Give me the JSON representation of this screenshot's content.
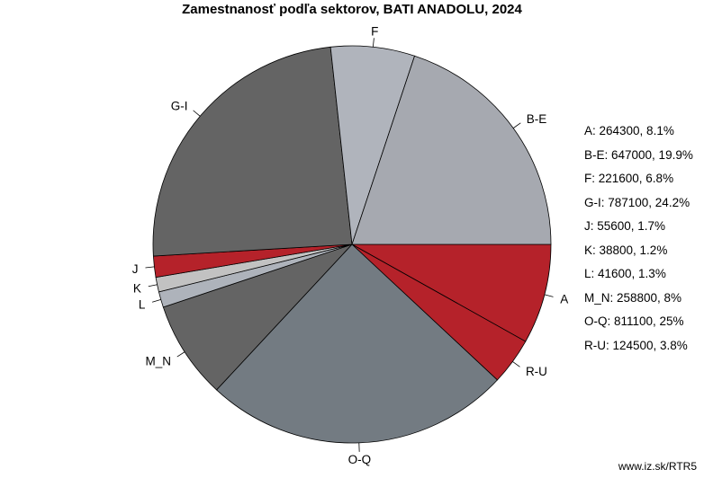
{
  "chart_data": {
    "type": "pie",
    "title": "Zamestnanosť podľa sektorov, BATI ANADOLU, 2024",
    "slices": [
      {
        "label": "A",
        "value": 264300,
        "percent": "8.1%",
        "color": "#b5222a"
      },
      {
        "label": "R-U",
        "value": 124500,
        "percent": "3.8%",
        "color": "#b5222a"
      },
      {
        "label": "O-Q",
        "value": 811100,
        "percent": "25%",
        "color": "#737b82"
      },
      {
        "label": "M_N",
        "value": 258800,
        "percent": "8%",
        "color": "#646464"
      },
      {
        "label": "L",
        "value": 41600,
        "percent": "1.3%",
        "color": "#aeb3bb"
      },
      {
        "label": "K",
        "value": 38800,
        "percent": "1.2%",
        "color": "#c2c2c2"
      },
      {
        "label": "J",
        "value": 55600,
        "percent": "1.7%",
        "color": "#b5222a"
      },
      {
        "label": "G-I",
        "value": 787100,
        "percent": "24.2%",
        "color": "#646464"
      },
      {
        "label": "F",
        "value": 221600,
        "percent": "6.8%",
        "color": "#b0b4bc"
      },
      {
        "label": "B-E",
        "value": 647000,
        "percent": "19.9%",
        "color": "#a6a9b0"
      }
    ],
    "legend": [
      "A: 264300, 8.1%",
      "B-E: 647000, 19.9%",
      "F: 221600, 6.8%",
      "G-I: 787100, 24.2%",
      "J: 55600, 1.7%",
      "K: 38800, 1.2%",
      "L: 41600, 1.3%",
      "M_N: 258800, 8%",
      "O-Q: 811100, 25%",
      "R-U: 124500, 3.8%"
    ],
    "legend_position": "right"
  },
  "footer": {
    "source": "www.iz.sk/RTR5"
  }
}
